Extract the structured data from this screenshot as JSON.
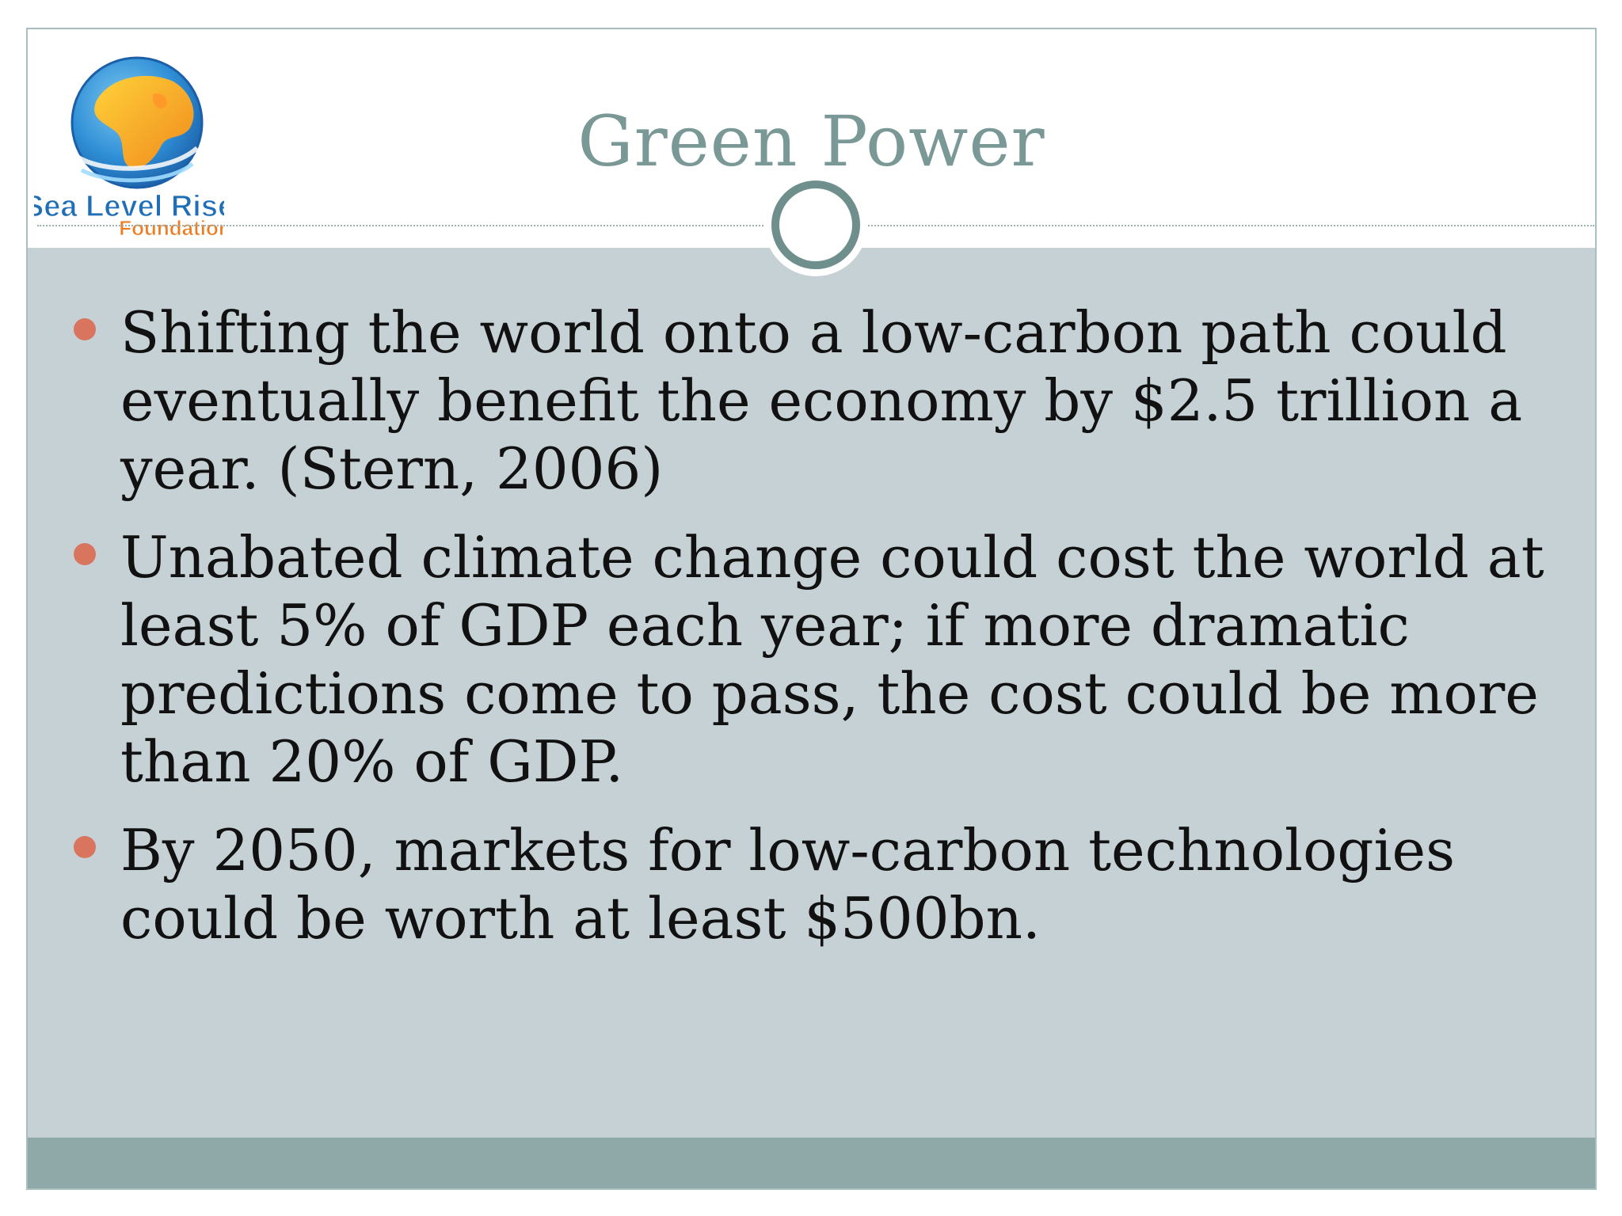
{
  "slide": {
    "title": "Green Power",
    "logo": {
      "line1": "Sea Level Rise",
      "line2": "Foundation"
    },
    "bullets": [
      "Shifting the world onto a low-carbon path could eventually benefit the economy by $2.5 trillion a year. (Stern, 2006)",
      "Unabated climate change could cost the world at least 5% of GDP each year; if more dramatic predictions come to pass, the cost could be more than 20% of GDP.",
      "By 2050, markets for low-carbon technologies could be worth at least $500bn."
    ]
  },
  "colors": {
    "title": "#7a9896",
    "content_background": "#c5d1d4",
    "footer_bar": "#8fa9a8",
    "bullet_dot": "#d9755e",
    "ring": "#6f8f8c"
  }
}
